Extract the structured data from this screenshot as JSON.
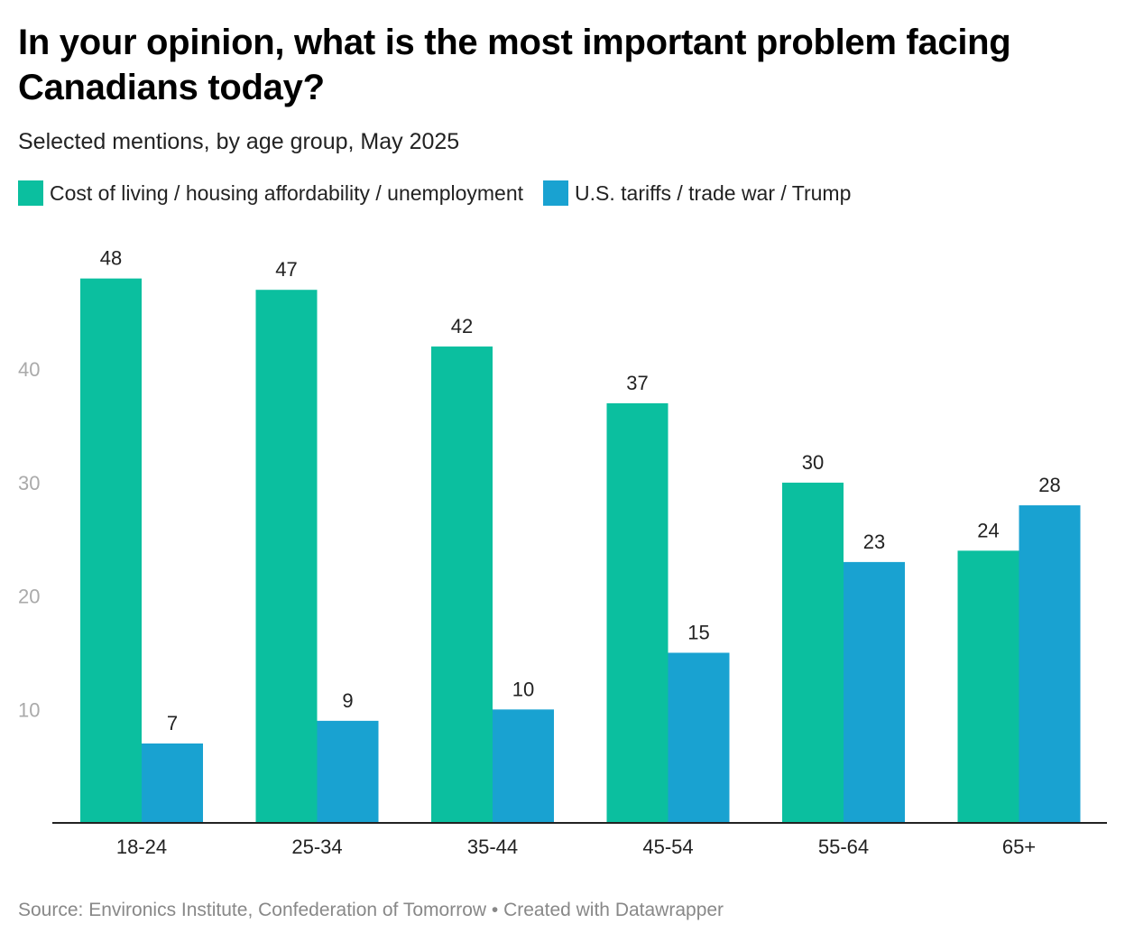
{
  "title": "In your opinion, what is the most important problem facing Canadians today?",
  "subtitle": "Selected mentions, by age group, May 2025",
  "legend": [
    {
      "label": "Cost of living / housing affordability / unemployment",
      "color": "#0bbf9f"
    },
    {
      "label": "U.S. tariffs / trade war / Trump",
      "color": "#19a2d1"
    }
  ],
  "footer": {
    "source": "Source: Environics Institute, Confederation of Tomorrow",
    "separator": "•",
    "credit": "Created with Datawrapper"
  },
  "chart_data": {
    "type": "bar",
    "title": "In your opinion, what is the most important problem facing Canadians today?",
    "subtitle": "Selected mentions, by age group, May 2025",
    "xlabel": "",
    "ylabel": "",
    "categories": [
      "18-24",
      "25-34",
      "35-44",
      "45-54",
      "55-64",
      "65+"
    ],
    "series": [
      {
        "name": "Cost of living / housing affordability / unemployment",
        "color": "#0bbf9f",
        "values": [
          48,
          47,
          42,
          37,
          30,
          24
        ]
      },
      {
        "name": "U.S. tariffs / trade war / Trump",
        "color": "#19a2d1",
        "values": [
          7,
          9,
          10,
          15,
          23,
          28
        ]
      }
    ],
    "ylim": [
      0,
      50
    ],
    "yticks": [
      10,
      20,
      30,
      40
    ],
    "grid": false,
    "legend_position": "top-left",
    "axis_color": "#222222",
    "tick_label_color": "#aaaaaa"
  }
}
